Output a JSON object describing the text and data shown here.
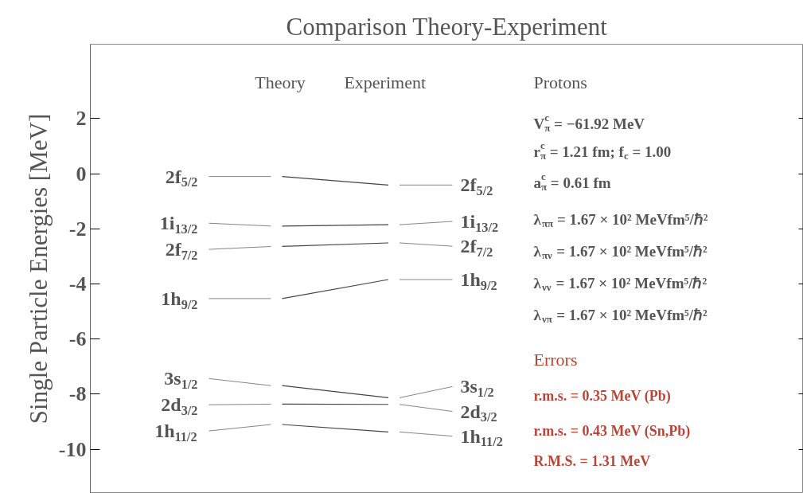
{
  "chart_data": {
    "type": "line",
    "title": "Comparison Theory-Experiment",
    "ylabel": "Single Particle Energies [MeV]",
    "categories": [
      "Theory",
      "Experiment"
    ],
    "ylim": [
      -11.6,
      4.7
    ],
    "yticks": [
      -10,
      -8,
      -6,
      -4,
      -2,
      0,
      2
    ],
    "tick_labels": "y",
    "grid": false,
    "legend": false,
    "series": [
      {
        "name": "2f$_{5/2}$",
        "color": "#444444",
        "values": [
          -0.1,
          -0.41
        ]
      },
      {
        "name": "1i$_{13/2}$",
        "color": "#444444",
        "values": [
          -1.9,
          -1.85
        ]
      },
      {
        "name": "2f$_{7/2}$",
        "color": "#444444",
        "values": [
          -2.64,
          -2.51
        ]
      },
      {
        "name": "1h$_{9/2}$",
        "color": "#444444",
        "values": [
          -4.53,
          -3.84
        ]
      },
      {
        "name": "3s$_{1/2}$",
        "color": "#444444",
        "values": [
          -7.69,
          -8.13
        ]
      },
      {
        "name": "2d$_{3/2}$",
        "color": "#444444",
        "values": [
          -8.36,
          -8.37
        ]
      },
      {
        "name": "1h$_{11/2}$",
        "color": "#444444",
        "values": [
          -9.1,
          -9.37
        ]
      }
    ],
    "annotations": [
      "Protons",
      "V$^{c}$$_{π}$ = −61.92 MeV",
      "r$^{c}$$_{π}$ = 1.21 fm; f$_{c}$ = 1.00",
      "a$^{c}$$_{π}$ = 0.61 fm",
      "λ$_{ππ}$ = 1.67 × 10² MeVfm⁵/ℏ²",
      "λ$_{πν}$ = 1.67 × 10² MeVfm⁵/ℏ²",
      "λ$_{νν}$ = 1.67 × 10² MeVfm⁵/ℏ²",
      "λ$_{νπ}$ = 1.67 × 10² MeVfm⁵/ℏ²",
      "Errors",
      "r.m.s. = 0.35 MeV  (Pb)",
      "r.m.s. = 0.43 MeV  (Sn,Pb)",
      "R.M.S. = 1.31 MeV"
    ]
  }
}
